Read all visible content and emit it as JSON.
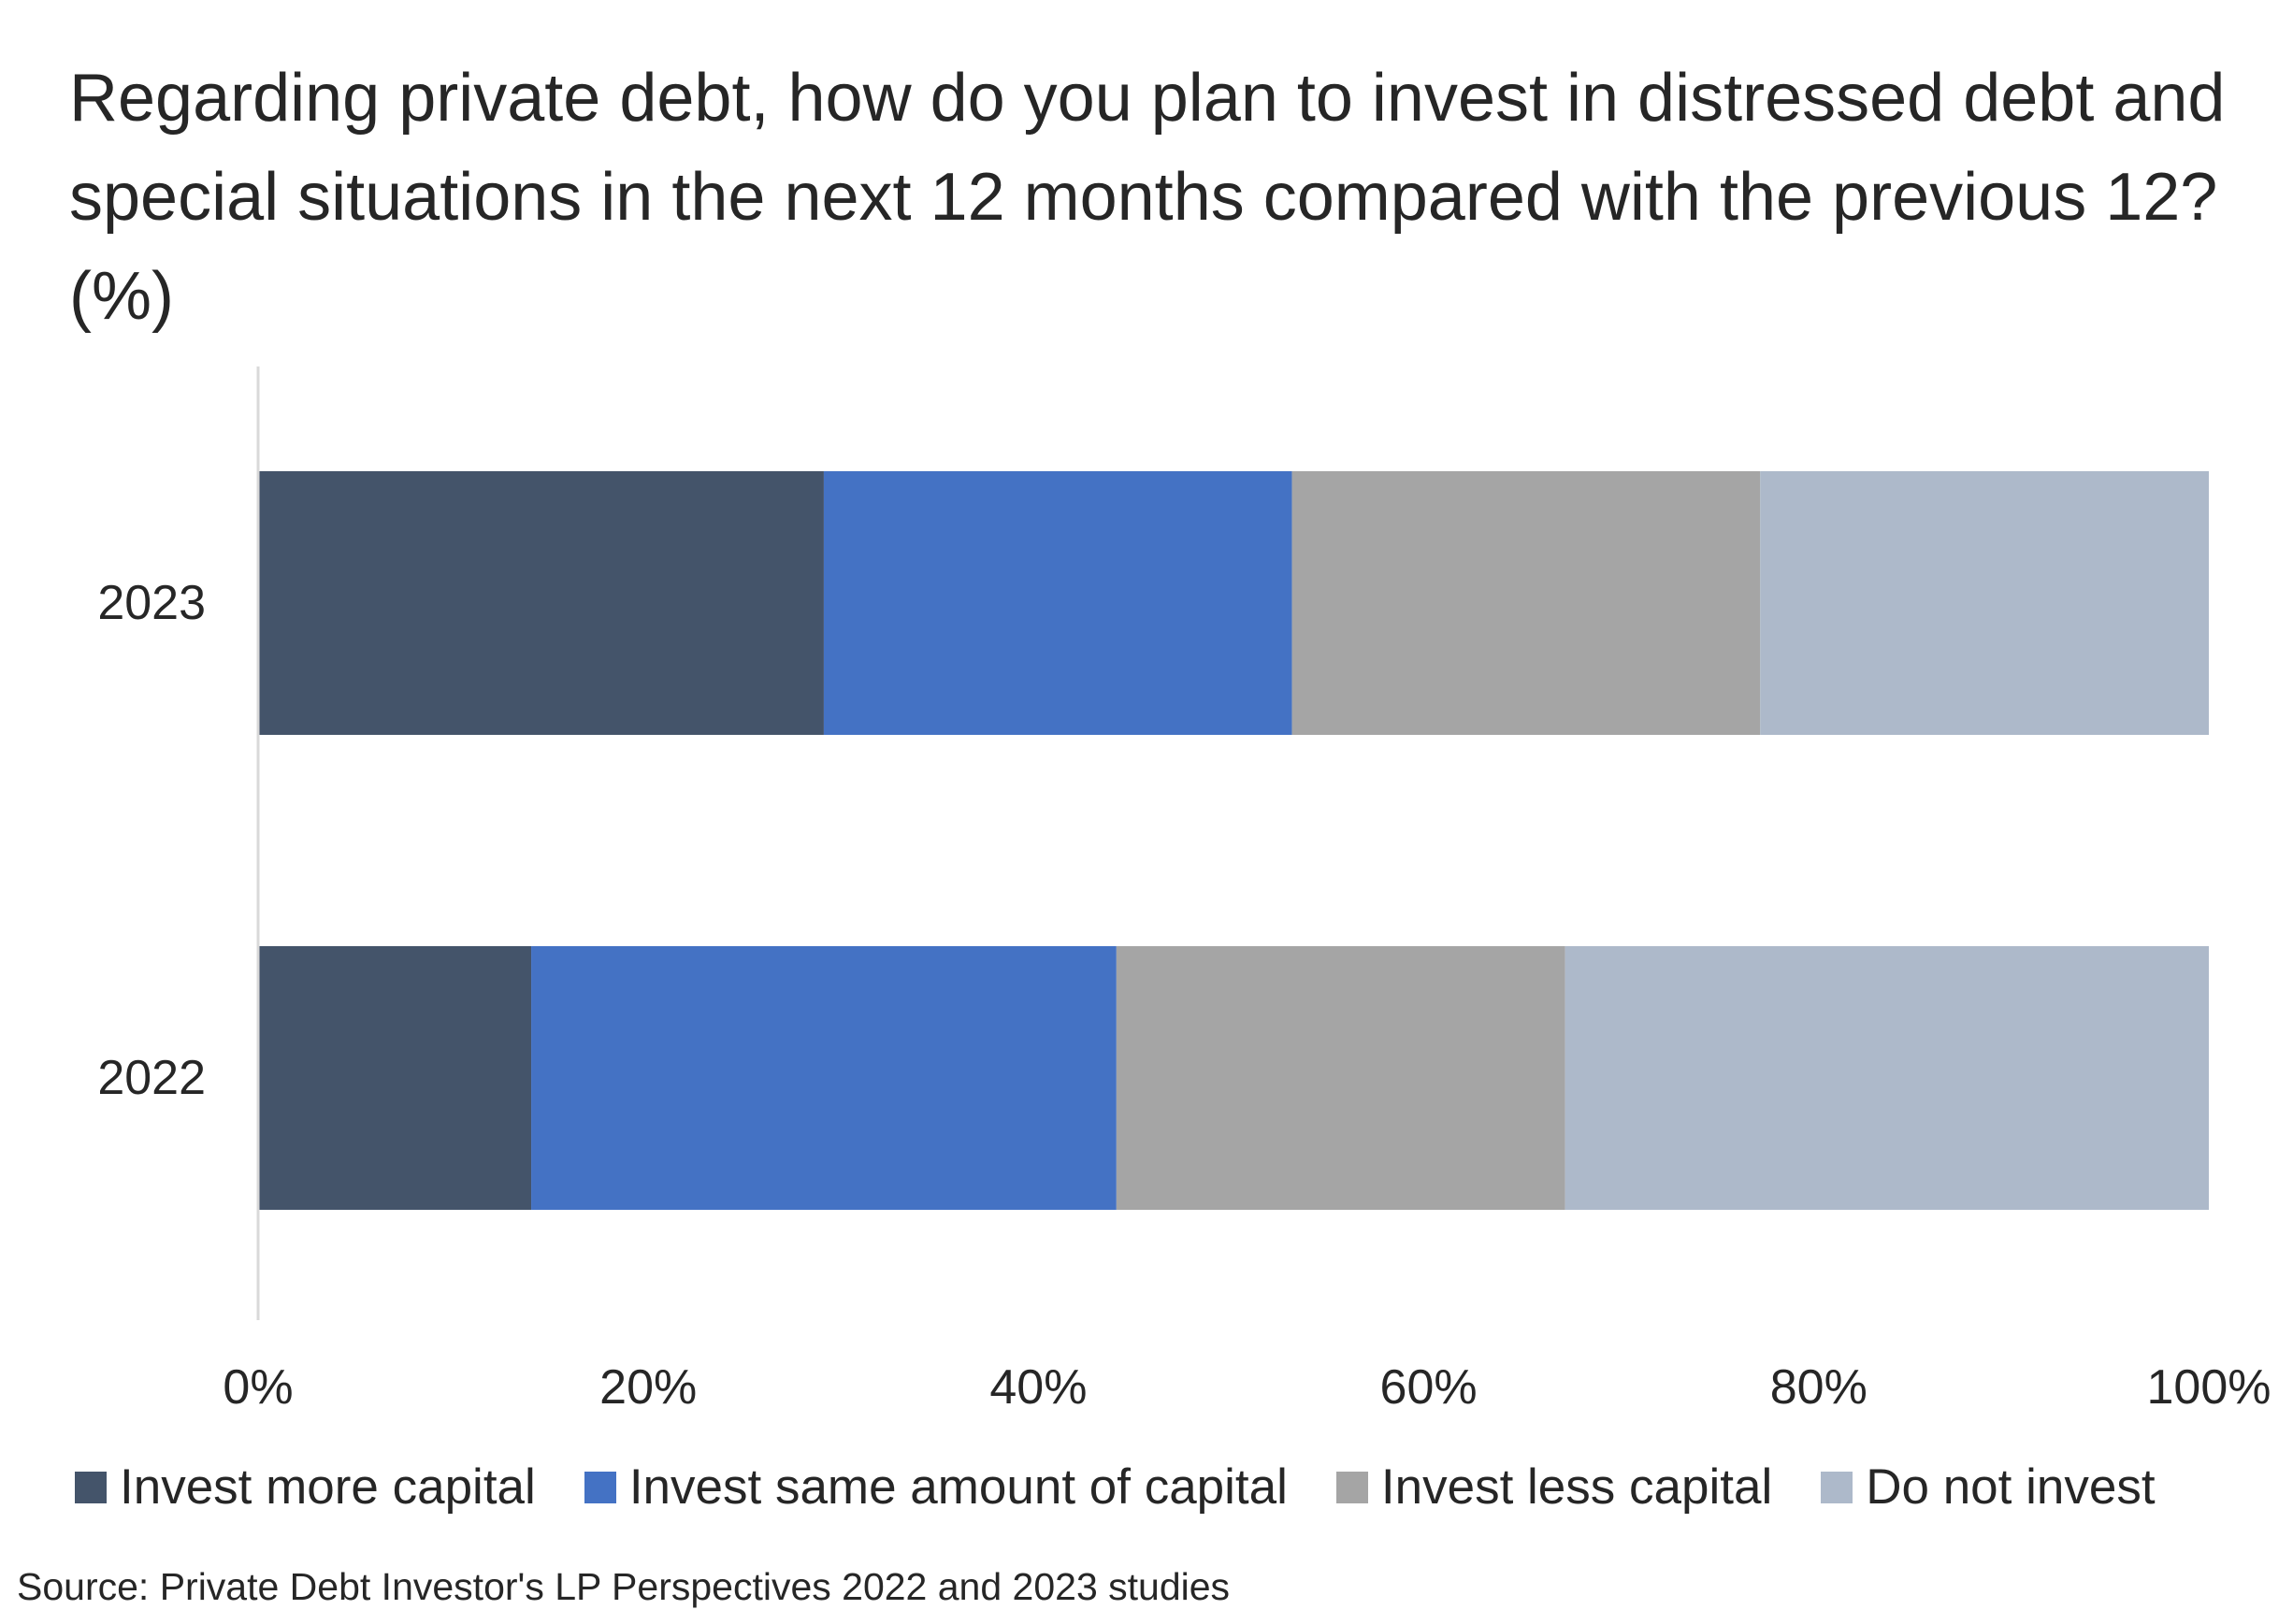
{
  "chart_data": {
    "type": "bar",
    "orientation": "horizontal",
    "stacked": "percent",
    "title": "Regarding private debt, how do you plan to invest in distressed debt and special situations in the next 12 months compared with the previous 12? (%)",
    "categories": [
      "2023",
      "2022"
    ],
    "series": [
      {
        "name": "Invest more capital",
        "color": "#44546a",
        "values": [
          29,
          14
        ]
      },
      {
        "name": "Invest same amount of capital",
        "color": "#4472c4",
        "values": [
          24,
          30
        ]
      },
      {
        "name": "Invest less capital",
        "color": "#a5a5a5",
        "values": [
          24,
          23
        ]
      },
      {
        "name": "Do not invest",
        "color": "#adb9ca",
        "values": [
          23,
          33
        ]
      }
    ],
    "x_ticks": [
      "0%",
      "20%",
      "40%",
      "60%",
      "80%",
      "100%"
    ],
    "xlim": [
      0,
      100
    ],
    "grid": false,
    "legend_position": "bottom",
    "source": "Source: Private Debt Investor's LP Perspectives 2022 and 2023 studies"
  }
}
